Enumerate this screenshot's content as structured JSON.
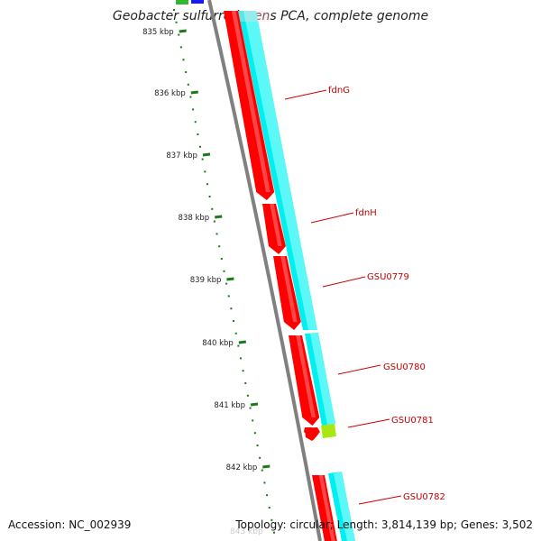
{
  "title": "Geobacter sulfurreducens PCA, complete genome",
  "footer": {
    "accession": "Accession: NC_002939",
    "summary": "Topology: circular; Length: 3,814,139 bp; Genes: 3,502"
  },
  "colors": {
    "background": "#ffffff",
    "backbone": "#808080",
    "gene_forward": "#ff0000",
    "gene_forward_light": "#ff9a9a",
    "cds_track": "#00f0f0",
    "cds_track_light": "#a8ffff",
    "tick": "#1a7a1a",
    "gene_label": "#cc0000",
    "misc_feature": "#a8e810",
    "blue_feature": "#1a1aee",
    "green_feature": "#2db82d"
  },
  "tick_labels": [
    "835 kbp",
    "836 kbp",
    "837 kbp",
    "838 kbp",
    "839 kbp",
    "840 kbp",
    "841 kbp",
    "842 kbp",
    "843 kbp"
  ],
  "genes": [
    "fdnG",
    "fdnH",
    "GSU0779",
    "GSU0780",
    "GSU0781",
    "GSU0782"
  ]
}
